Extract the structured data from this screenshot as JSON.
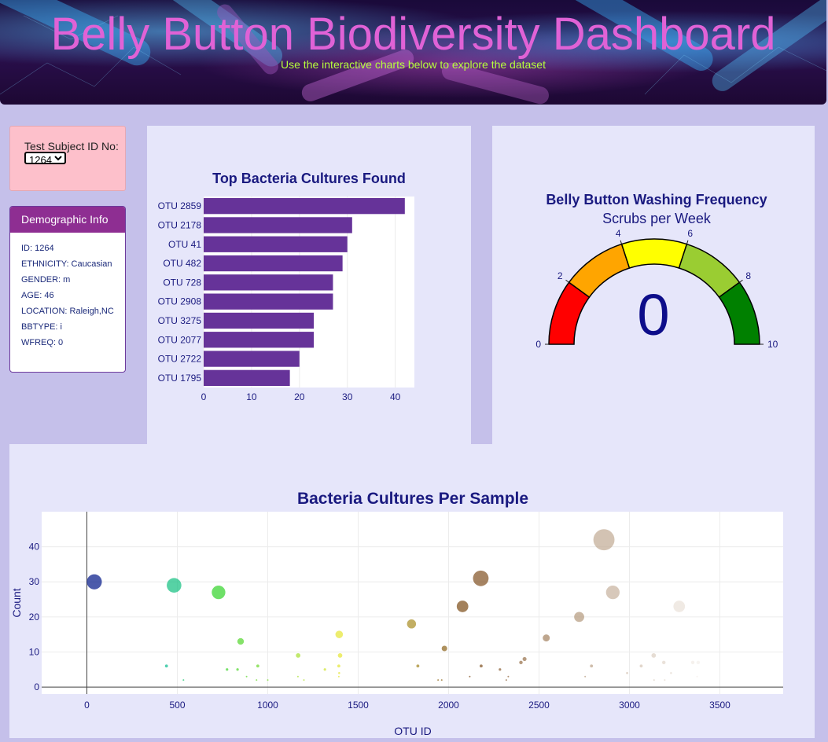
{
  "header": {
    "title": "Belly Button Biodiversity Dashboard",
    "subtitle": "Use the interactive charts below to explore the dataset"
  },
  "selector": {
    "label": "Test Subject ID No:",
    "selected": "1264"
  },
  "demographics": {
    "title": "Demographic Info",
    "rows": [
      "ID: 1264",
      "ETHNICITY: Caucasian",
      "GENDER: m",
      "AGE: 46",
      "LOCATION: Raleigh,NC",
      "BBTYPE: i",
      "WFREQ: 0"
    ]
  },
  "colors": {
    "bar": "#663399",
    "title_text": "#1a1a80"
  },
  "chart_data": [
    {
      "type": "bar",
      "orientation": "horizontal",
      "title": "Top Bacteria Cultures Found",
      "categories": [
        "OTU 2859",
        "OTU 2178",
        "OTU 41",
        "OTU 482",
        "OTU 728",
        "OTU 2908",
        "OTU 3275",
        "OTU 2077",
        "OTU 2722",
        "OTU 1795"
      ],
      "values": [
        42,
        31,
        30,
        29,
        27,
        27,
        23,
        23,
        20,
        18
      ],
      "xlim": [
        0,
        44
      ],
      "xticks": [
        0,
        10,
        20,
        30,
        40
      ],
      "color": "#663399"
    },
    {
      "type": "gauge",
      "title": "Belly Button Washing Frequency",
      "subtitle": "Scrubs per Week",
      "value": 0,
      "range": [
        0,
        10
      ],
      "ticks": [
        0,
        2,
        4,
        6,
        8,
        10
      ],
      "bands": [
        {
          "from": 0,
          "to": 2,
          "color": "#ff0000"
        },
        {
          "from": 2,
          "to": 4,
          "color": "#ffa500"
        },
        {
          "from": 4,
          "to": 6,
          "color": "#ffff00"
        },
        {
          "from": 6,
          "to": 8,
          "color": "#9acd32"
        },
        {
          "from": 8,
          "to": 10,
          "color": "#008000"
        }
      ]
    },
    {
      "type": "scatter",
      "title": "Bacteria Cultures Per Sample",
      "xlabel": "OTU ID",
      "ylabel": "Count",
      "xlim": [
        -250,
        3850
      ],
      "ylim": [
        -2,
        50
      ],
      "xticks": [
        0,
        500,
        1000,
        1500,
        2000,
        2500,
        3000,
        3500
      ],
      "yticks": [
        0,
        10,
        20,
        30,
        40
      ],
      "grid": true,
      "colorscale": "Earth",
      "points": [
        {
          "x": 41,
          "y": 30
        },
        {
          "x": 482,
          "y": 29
        },
        {
          "x": 728,
          "y": 27
        },
        {
          "x": 2859,
          "y": 42
        },
        {
          "x": 2178,
          "y": 31
        },
        {
          "x": 2908,
          "y": 27
        },
        {
          "x": 2077,
          "y": 23
        },
        {
          "x": 3275,
          "y": 23
        },
        {
          "x": 2722,
          "y": 20
        },
        {
          "x": 1795,
          "y": 18
        },
        {
          "x": 1395,
          "y": 15
        },
        {
          "x": 2540,
          "y": 14
        },
        {
          "x": 850,
          "y": 13
        },
        {
          "x": 1977,
          "y": 11
        },
        {
          "x": 1168,
          "y": 9
        },
        {
          "x": 1400,
          "y": 9
        },
        {
          "x": 3134,
          "y": 9
        },
        {
          "x": 2420,
          "y": 8
        },
        {
          "x": 3190,
          "y": 7
        },
        {
          "x": 2400,
          "y": 7
        },
        {
          "x": 3350,
          "y": 7
        },
        {
          "x": 3380,
          "y": 7
        },
        {
          "x": 440,
          "y": 6
        },
        {
          "x": 945,
          "y": 6
        },
        {
          "x": 1393,
          "y": 6
        },
        {
          "x": 1830,
          "y": 6
        },
        {
          "x": 2180,
          "y": 6
        },
        {
          "x": 2790,
          "y": 6
        },
        {
          "x": 3065,
          "y": 6
        },
        {
          "x": 775,
          "y": 5
        },
        {
          "x": 833,
          "y": 5
        },
        {
          "x": 1316,
          "y": 5
        },
        {
          "x": 2284,
          "y": 5
        },
        {
          "x": 1395,
          "y": 4
        },
        {
          "x": 2987,
          "y": 4
        },
        {
          "x": 3230,
          "y": 4
        },
        {
          "x": 883,
          "y": 3
        },
        {
          "x": 1167,
          "y": 3
        },
        {
          "x": 1393,
          "y": 3
        },
        {
          "x": 2117,
          "y": 3
        },
        {
          "x": 2330,
          "y": 3
        },
        {
          "x": 2755,
          "y": 3
        },
        {
          "x": 3374,
          "y": 3
        },
        {
          "x": 534,
          "y": 2
        },
        {
          "x": 938,
          "y": 2
        },
        {
          "x": 1000,
          "y": 2
        },
        {
          "x": 1200,
          "y": 2
        },
        {
          "x": 1942,
          "y": 2
        },
        {
          "x": 1962,
          "y": 2
        },
        {
          "x": 2319,
          "y": 2
        },
        {
          "x": 3136,
          "y": 2
        },
        {
          "x": 3195,
          "y": 2
        }
      ]
    }
  ]
}
